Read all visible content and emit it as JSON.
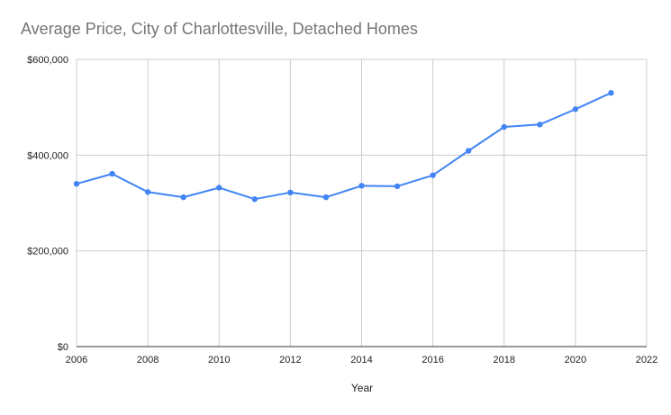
{
  "chart_data": {
    "type": "line",
    "title": "Average Price, City of Charlottesville, Detached Homes",
    "xlabel": "Year",
    "ylabel": "",
    "xlim": [
      2006,
      2022
    ],
    "ylim": [
      0,
      600000
    ],
    "x_ticks": [
      2006,
      2008,
      2010,
      2012,
      2014,
      2016,
      2018,
      2020,
      2022
    ],
    "x_tick_labels": [
      "2006",
      "2008",
      "2010",
      "2012",
      "2014",
      "2016",
      "2018",
      "2020",
      "2022"
    ],
    "y_ticks": [
      0,
      200000,
      400000,
      600000
    ],
    "y_tick_labels": [
      "$0",
      "$200,000",
      "$400,000",
      "$600,000"
    ],
    "grid": true,
    "legend": "none",
    "color": "#4285f4",
    "series": [
      {
        "x": [
          2006,
          2007,
          2008,
          2009,
          2010,
          2011,
          2012,
          2013,
          2014,
          2015,
          2016,
          2017,
          2018,
          2019,
          2020,
          2021
        ],
        "values": [
          340000,
          361000,
          323000,
          312000,
          332000,
          308000,
          322000,
          312000,
          336000,
          335000,
          358000,
          409000,
          459000,
          464000,
          496000,
          530000
        ]
      }
    ]
  }
}
